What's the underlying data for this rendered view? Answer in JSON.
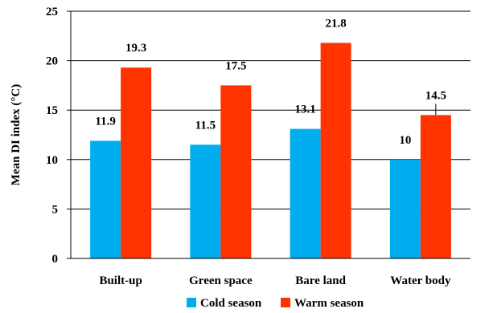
{
  "chart_data": {
    "type": "bar",
    "categories": [
      "Built-up",
      "Green space",
      "Bare land",
      "Water body"
    ],
    "series": [
      {
        "name": "Cold season",
        "values": [
          11.9,
          11.5,
          13.1,
          10
        ],
        "labels": [
          "11.9",
          "11.5",
          "13.1",
          "10"
        ],
        "color": "#00aef0"
      },
      {
        "name": "Warm season",
        "values": [
          19.3,
          17.5,
          21.8,
          14.5
        ],
        "labels": [
          "19.3",
          "17.5",
          "21.8",
          "14.5"
        ],
        "color": "#ff3300"
      }
    ],
    "ylabel": "Mean DI index (°C)",
    "ylim": [
      0,
      25
    ],
    "yticks": [
      "0",
      "5",
      "10",
      "15",
      "20",
      "25"
    ],
    "grid": true,
    "legend": "bottom"
  }
}
